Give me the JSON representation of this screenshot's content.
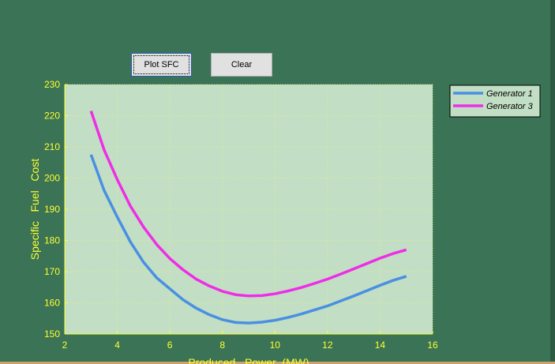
{
  "buttons": {
    "plot": "Plot SFC",
    "clear": "Clear"
  },
  "chart_data": {
    "type": "line",
    "x_label": "Produced   Power  (MW)",
    "y_label": "Specific   Fuel   Cost",
    "x": [
      3,
      3.5,
      4,
      4.5,
      5,
      5.5,
      6,
      6.5,
      7,
      7.5,
      8,
      8.5,
      9,
      9.5,
      10,
      10.5,
      11,
      11.5,
      12,
      12.5,
      13,
      13.5,
      14,
      14.5,
      15
    ],
    "series": [
      {
        "name": "Generator 1",
        "color": "#4a90e2",
        "values": [
          207.5,
          196,
          187.5,
          179.5,
          173,
          168,
          164.5,
          161,
          158.3,
          156.2,
          154.6,
          153.7,
          153.5,
          153.8,
          154.4,
          155.3,
          156.4,
          157.7,
          159,
          160.6,
          162.2,
          163.9,
          165.6,
          167.2,
          168.5
        ]
      },
      {
        "name": "Generator 3",
        "color": "#ee2ee6",
        "values": [
          221.5,
          209,
          199.5,
          191,
          184.3,
          178.7,
          174.2,
          170.6,
          167.6,
          165.4,
          163.7,
          162.6,
          162.2,
          162.3,
          162.9,
          163.8,
          164.9,
          166.2,
          167.6,
          169.2,
          170.9,
          172.6,
          174.3,
          175.8,
          177
        ]
      }
    ],
    "xlim": [
      2,
      16
    ],
    "xticks": [
      2,
      4,
      6,
      8,
      10,
      12,
      14,
      16
    ],
    "ylim": [
      150,
      230
    ],
    "yticks": [
      150,
      160,
      170,
      180,
      190,
      200,
      210,
      220,
      230
    ],
    "grid": true,
    "legend": "outside-right"
  }
}
